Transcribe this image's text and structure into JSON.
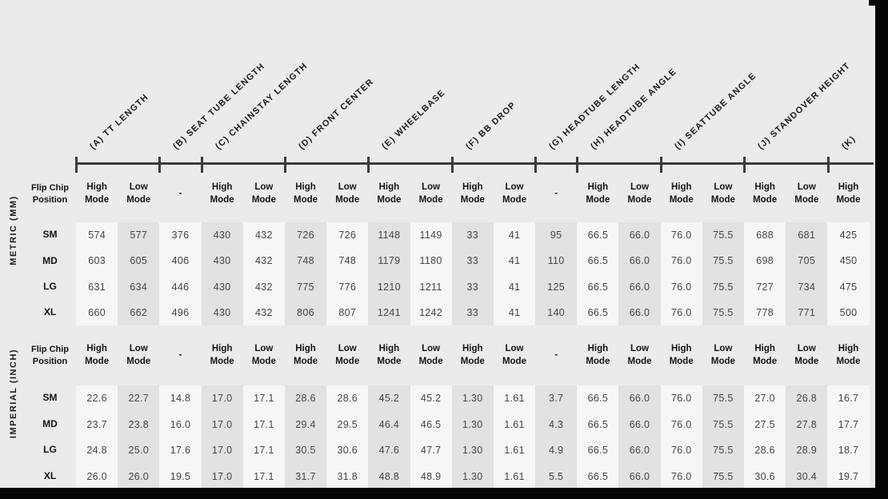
{
  "colors": {
    "page_bg": "#ebebeb",
    "stripe_light": "#f6f6f6",
    "stripe_dark": "#e2e2e2",
    "axis": "#3b3b3b",
    "header_text": "#1c1c1c",
    "value_text": "#454545",
    "photo_edge": "#050505"
  },
  "columns": [
    {
      "id": "A",
      "label": "(A) TT LENGTH",
      "modes": [
        "High Mode",
        "Low Mode"
      ]
    },
    {
      "id": "B",
      "label": "(B) SEAT TUBE LENGTH",
      "modes": [
        "-"
      ]
    },
    {
      "id": "C",
      "label": "(C) CHAINSTAY LENGTH",
      "modes": [
        "High Mode",
        "Low Mode"
      ]
    },
    {
      "id": "D",
      "label": "(D) FRONT CENTER",
      "modes": [
        "High Mode",
        "Low Mode"
      ]
    },
    {
      "id": "E",
      "label": "(E) WHEELBASE",
      "modes": [
        "High Mode",
        "Low Mode"
      ]
    },
    {
      "id": "F",
      "label": "(F) BB DROP",
      "modes": [
        "High Mode",
        "Low Mode"
      ]
    },
    {
      "id": "G",
      "label": "(G) HEADTUBE LENGTH",
      "modes": [
        "-"
      ]
    },
    {
      "id": "H",
      "label": "(H) HEADTUBE ANGLE",
      "modes": [
        "High Mode",
        "Low Mode"
      ]
    },
    {
      "id": "I",
      "label": "(I) SEATTUBE ANGLE",
      "modes": [
        "High Mode",
        "Low Mode"
      ]
    },
    {
      "id": "J",
      "label": "(J) STANDOVER HEIGHT",
      "modes": [
        "High Mode",
        "Low Mode"
      ]
    },
    {
      "id": "K",
      "label": "(K)",
      "modes": [
        "High Mode"
      ]
    }
  ],
  "sections": [
    {
      "label": "METRIC (MM)",
      "row_header": "Flip Chip Position",
      "rows": [
        {
          "size": "SM",
          "values": [
            "574",
            "577",
            "376",
            "430",
            "432",
            "726",
            "726",
            "1148",
            "1149",
            "33",
            "41",
            "95",
            "66.5",
            "66.0",
            "76.0",
            "75.5",
            "688",
            "681",
            "425"
          ]
        },
        {
          "size": "MD",
          "values": [
            "603",
            "605",
            "406",
            "430",
            "432",
            "748",
            "748",
            "1179",
            "1180",
            "33",
            "41",
            "110",
            "66.5",
            "66.0",
            "76.0",
            "75.5",
            "698",
            "705",
            "450"
          ]
        },
        {
          "size": "LG",
          "values": [
            "631",
            "634",
            "446",
            "430",
            "432",
            "775",
            "776",
            "1210",
            "1211",
            "33",
            "41",
            "125",
            "66.5",
            "66.0",
            "76.0",
            "75.5",
            "727",
            "734",
            "475"
          ]
        },
        {
          "size": "XL",
          "values": [
            "660",
            "662",
            "496",
            "430",
            "432",
            "806",
            "807",
            "1241",
            "1242",
            "33",
            "41",
            "140",
            "66.5",
            "66.0",
            "76.0",
            "75.5",
            "778",
            "771",
            "500"
          ]
        }
      ]
    },
    {
      "label": "IMPERIAL (INCH)",
      "row_header": "Flip Chip Position",
      "rows": [
        {
          "size": "SM",
          "values": [
            "22.6",
            "22.7",
            "14.8",
            "17.0",
            "17.1",
            "28.6",
            "28.6",
            "45.2",
            "45.2",
            "1.30",
            "1.61",
            "3.7",
            "66.5",
            "66.0",
            "76.0",
            "75.5",
            "27.0",
            "26.8",
            "16.7"
          ]
        },
        {
          "size": "MD",
          "values": [
            "23.7",
            "23.8",
            "16.0",
            "17.0",
            "17.1",
            "29.4",
            "29.5",
            "46.4",
            "46.5",
            "1.30",
            "1.61",
            "4.3",
            "66.5",
            "66.0",
            "76.0",
            "75.5",
            "27.5",
            "27.8",
            "17.7"
          ]
        },
        {
          "size": "LG",
          "values": [
            "24.8",
            "25.0",
            "17.6",
            "17.0",
            "17.1",
            "30.5",
            "30.6",
            "47.6",
            "47.7",
            "1.30",
            "1.61",
            "4.9",
            "66.5",
            "66.0",
            "76.0",
            "75.5",
            "28.6",
            "28.9",
            "18.7"
          ]
        },
        {
          "size": "XL",
          "values": [
            "26.0",
            "26.0",
            "19.5",
            "17.0",
            "17.1",
            "31.7",
            "31.8",
            "48.8",
            "48.9",
            "1.30",
            "1.61",
            "5.5",
            "66.5",
            "66.0",
            "76.0",
            "75.5",
            "30.6",
            "30.4",
            "19.7"
          ]
        }
      ]
    }
  ],
  "chart_data": {
    "type": "table",
    "title": "",
    "column_groups": [
      "(A) TT LENGTH",
      "(B) SEAT TUBE LENGTH",
      "(C) CHAINSTAY LENGTH",
      "(D) FRONT CENTER",
      "(E) WHEELBASE",
      "(F) BB DROP",
      "(G) HEADTUBE LENGTH",
      "(H) HEADTUBE ANGLE",
      "(I) SEATTUBE ANGLE",
      "(J) STANDOVER HEIGHT",
      "(K)"
    ],
    "mode_header": [
      "High Mode",
      "Low Mode",
      "-",
      "High Mode",
      "Low Mode",
      "High Mode",
      "Low Mode",
      "High Mode",
      "Low Mode",
      "High Mode",
      "Low Mode",
      "-",
      "High Mode",
      "Low Mode",
      "High Mode",
      "Low Mode",
      "High Mode",
      "Low Mode",
      "High Mode"
    ],
    "metric_mm": {
      "SM": [
        574,
        577,
        376,
        430,
        432,
        726,
        726,
        1148,
        1149,
        33,
        41,
        95,
        66.5,
        66.0,
        76.0,
        75.5,
        688,
        681,
        425
      ],
      "MD": [
        603,
        605,
        406,
        430,
        432,
        748,
        748,
        1179,
        1180,
        33,
        41,
        110,
        66.5,
        66.0,
        76.0,
        75.5,
        698,
        705,
        450
      ],
      "LG": [
        631,
        634,
        446,
        430,
        432,
        775,
        776,
        1210,
        1211,
        33,
        41,
        125,
        66.5,
        66.0,
        76.0,
        75.5,
        727,
        734,
        475
      ],
      "XL": [
        660,
        662,
        496,
        430,
        432,
        806,
        807,
        1241,
        1242,
        33,
        41,
        140,
        66.5,
        66.0,
        76.0,
        75.5,
        778,
        771,
        500
      ]
    },
    "imperial_inch": {
      "SM": [
        22.6,
        22.7,
        14.8,
        17.0,
        17.1,
        28.6,
        28.6,
        45.2,
        45.2,
        1.3,
        1.61,
        3.7,
        66.5,
        66.0,
        76.0,
        75.5,
        27.0,
        26.8,
        16.7
      ],
      "MD": [
        23.7,
        23.8,
        16.0,
        17.0,
        17.1,
        29.4,
        29.5,
        46.4,
        46.5,
        1.3,
        1.61,
        4.3,
        66.5,
        66.0,
        76.0,
        75.5,
        27.5,
        27.8,
        17.7
      ],
      "LG": [
        24.8,
        25.0,
        17.6,
        17.0,
        17.1,
        30.5,
        30.6,
        47.6,
        47.7,
        1.3,
        1.61,
        4.9,
        66.5,
        66.0,
        76.0,
        75.5,
        28.6,
        28.9,
        18.7
      ],
      "XL": [
        26.0,
        26.0,
        19.5,
        17.0,
        17.1,
        31.7,
        31.8,
        48.8,
        48.9,
        1.3,
        1.61,
        5.5,
        66.5,
        66.0,
        76.0,
        75.5,
        30.6,
        30.4,
        19.7
      ]
    }
  }
}
